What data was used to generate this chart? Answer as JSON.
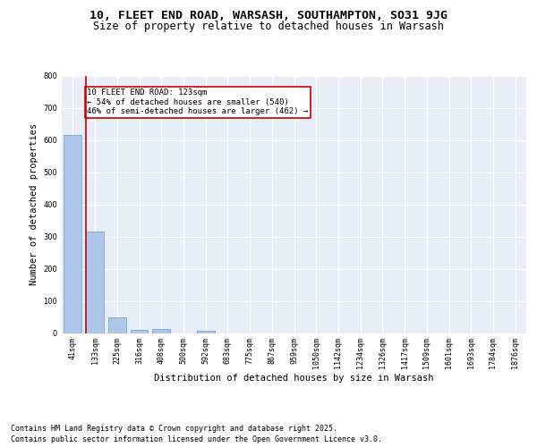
{
  "title": "10, FLEET END ROAD, WARSASH, SOUTHAMPTON, SO31 9JG",
  "subtitle": "Size of property relative to detached houses in Warsash",
  "xlabel": "Distribution of detached houses by size in Warsash",
  "ylabel": "Number of detached properties",
  "bar_color": "#aec6e8",
  "bar_edge_color": "#5a9fd4",
  "bg_color": "#e8eef8",
  "grid_color": "#ffffff",
  "categories": [
    "41sqm",
    "133sqm",
    "225sqm",
    "316sqm",
    "408sqm",
    "500sqm",
    "592sqm",
    "683sqm",
    "775sqm",
    "867sqm",
    "959sqm",
    "1050sqm",
    "1142sqm",
    "1234sqm",
    "1326sqm",
    "1417sqm",
    "1509sqm",
    "1601sqm",
    "1693sqm",
    "1784sqm",
    "1876sqm"
  ],
  "values": [
    617,
    316,
    50,
    10,
    13,
    0,
    7,
    0,
    0,
    0,
    0,
    0,
    0,
    0,
    0,
    0,
    0,
    0,
    0,
    0,
    0
  ],
  "red_line_color": "#cc0000",
  "annotation_text": "10 FLEET END ROAD: 123sqm\n← 54% of detached houses are smaller (540)\n46% of semi-detached houses are larger (462) →",
  "annotation_box_color": "#ffffff",
  "annotation_box_edge": "#cc0000",
  "ylim": [
    0,
    800
  ],
  "yticks": [
    0,
    100,
    200,
    300,
    400,
    500,
    600,
    700,
    800
  ],
  "footer_line1": "Contains HM Land Registry data © Crown copyright and database right 2025.",
  "footer_line2": "Contains public sector information licensed under the Open Government Licence v3.0.",
  "title_fontsize": 9.5,
  "subtitle_fontsize": 8.5,
  "axis_label_fontsize": 7.5,
  "tick_fontsize": 6,
  "annotation_fontsize": 6.5,
  "footer_fontsize": 6
}
